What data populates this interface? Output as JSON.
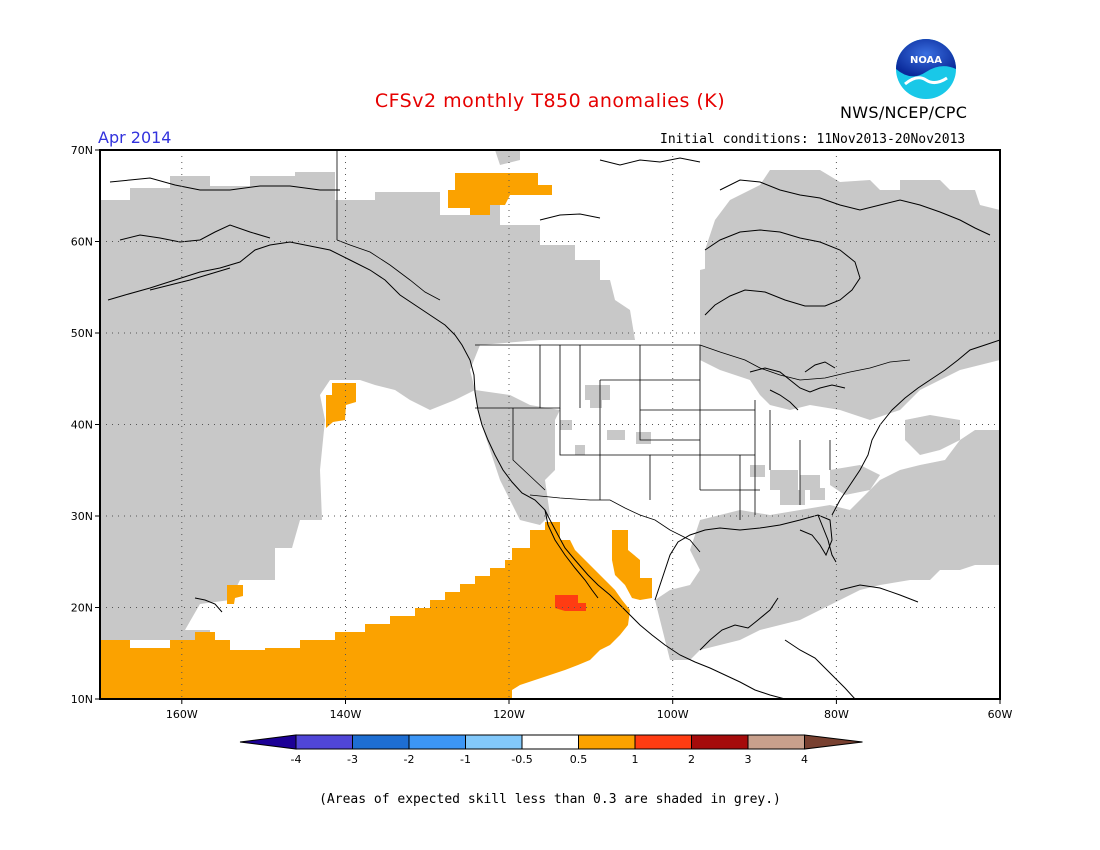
{
  "header": {
    "title": "CFSv2 monthly T850 anomalies (K)",
    "agency": "NWS/NCEP/CPC",
    "valid_month": "Apr 2014",
    "initial_conditions": "Initial conditions: 11Nov2013-20Nov2013",
    "logo_text": "NOAA"
  },
  "map": {
    "lat_labels": [
      "70N",
      "60N",
      "50N",
      "40N",
      "30N",
      "20N",
      "10N"
    ],
    "lon_labels": [
      "160W",
      "140W",
      "120W",
      "100W",
      "80W",
      "60W"
    ],
    "extent": {
      "lon_min": -170,
      "lon_max": -60,
      "lat_min": 10,
      "lat_max": 70
    },
    "gridlines": true
  },
  "colorbar": {
    "tick_labels": [
      "-4",
      "-3",
      "-2",
      "-1",
      "-0.5",
      "0.5",
      "1",
      "2",
      "3",
      "4"
    ],
    "colors": [
      "#1c0096",
      "#5046d7",
      "#1e6ed2",
      "#3c96f5",
      "#82c8fa",
      "#ffffff",
      "#fba200",
      "#ff3c12",
      "#a50b0b",
      "#c8a08c",
      "#784030"
    ]
  },
  "footer": {
    "note": "(Areas of expected skill less than 0.3 are shaded in grey.)"
  },
  "legend_colors": {
    "grey_low_skill": "#c8c8c8",
    "anomaly_05_1": "#fba200",
    "anomaly_1_2": "#ff3c12"
  }
}
